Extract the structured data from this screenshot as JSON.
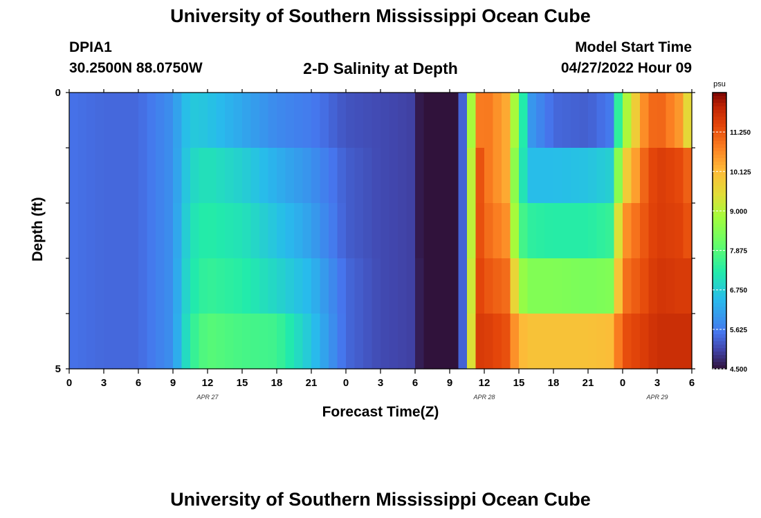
{
  "page": {
    "title": "University of Southern Mississippi Ocean Cube",
    "title_repeat": "University of Southern Mississippi Ocean Cube",
    "station_id": "DPIA1",
    "coordinates": "30.2500N  88.0750W",
    "plot_title": "2-D Salinity at Depth",
    "model_start_label": "Model Start Time",
    "model_start_value": "04/27/2022 Hour 09"
  },
  "chart_data": {
    "type": "heatmap",
    "title": "2-D Salinity at Depth",
    "xlabel": "Forecast Time(Z)",
    "ylabel": "Depth (ft)",
    "ylim": [
      0,
      5
    ],
    "y_tick_labels": [
      "0",
      "5"
    ],
    "x_tick_labels": [
      "0",
      "3",
      "6",
      "9",
      "12",
      "15",
      "18",
      "21",
      "0",
      "3",
      "6",
      "9",
      "12",
      "15",
      "18",
      "21",
      "0",
      "3",
      "6"
    ],
    "x_range_hours": [
      0,
      54
    ],
    "date_labels": [
      {
        "text": "APR 27",
        "hour": 12
      },
      {
        "text": "APR 28",
        "hour": 36
      },
      {
        "text": "APR 29",
        "hour": 51
      }
    ],
    "colorbar": {
      "unit": "psu",
      "min": 4.5,
      "max": 12.375,
      "tick_labels": [
        "4.500",
        "5.625",
        "6.750",
        "7.875",
        "9.000",
        "10.125",
        "11.250"
      ]
    },
    "depth_layers_ft": [
      0.5,
      1.5,
      2.5,
      3.5,
      4.5
    ],
    "time_hours": [
      0,
      3,
      6,
      9,
      10,
      11,
      12,
      15,
      18,
      21,
      24,
      27,
      30,
      31,
      32,
      33,
      34,
      34.5,
      35,
      35.5,
      36,
      38,
      39,
      40,
      42,
      45,
      47,
      48,
      50,
      51,
      53,
      54
    ],
    "salinity_psu": [
      [
        5.5,
        5.4,
        5.4,
        5.9,
        6.5,
        6.7,
        6.6,
        6.2,
        5.8,
        5.6,
        5.2,
        5.1,
        5.0,
        3.9,
        3.6,
        4.3,
        4.8,
        7.0,
        9.5,
        10.8,
        11.0,
        10.3,
        8.0,
        6.0,
        5.4,
        5.3,
        5.6,
        8.5,
        10.8,
        11.2,
        10.5,
        9.0
      ],
      [
        5.5,
        5.4,
        5.4,
        5.9,
        6.6,
        7.0,
        7.1,
        6.8,
        6.3,
        5.9,
        5.3,
        5.1,
        5.0,
        3.9,
        3.6,
        4.3,
        4.8,
        7.0,
        9.8,
        11.4,
        11.0,
        10.3,
        7.5,
        6.5,
        6.5,
        6.6,
        6.8,
        9.5,
        11.2,
        11.6,
        11.4,
        11.0
      ],
      [
        5.5,
        5.4,
        5.4,
        5.9,
        6.7,
        7.2,
        7.3,
        7.1,
        6.6,
        6.1,
        5.3,
        5.1,
        5.0,
        3.9,
        3.6,
        4.3,
        4.8,
        7.0,
        9.8,
        11.4,
        11.1,
        10.6,
        7.8,
        7.4,
        7.3,
        7.3,
        7.5,
        10.5,
        11.3,
        11.6,
        11.5,
        11.2
      ],
      [
        5.5,
        5.4,
        5.4,
        5.9,
        6.8,
        7.3,
        7.5,
        7.3,
        6.9,
        6.4,
        5.4,
        5.1,
        5.0,
        4.0,
        3.7,
        4.3,
        4.8,
        7.0,
        10.0,
        11.5,
        11.3,
        11.0,
        8.8,
        8.4,
        8.4,
        8.3,
        8.4,
        10.9,
        11.4,
        11.7,
        11.6,
        11.6
      ],
      [
        5.5,
        5.4,
        5.4,
        5.9,
        6.9,
        7.6,
        7.9,
        7.7,
        7.6,
        6.6,
        5.4,
        5.1,
        5.0,
        4.0,
        3.7,
        4.3,
        4.8,
        7.0,
        10.2,
        11.6,
        11.6,
        11.3,
        10.2,
        10.0,
        10.0,
        10.0,
        10.1,
        11.3,
        11.6,
        11.8,
        11.8,
        11.8
      ]
    ],
    "grid": false
  }
}
